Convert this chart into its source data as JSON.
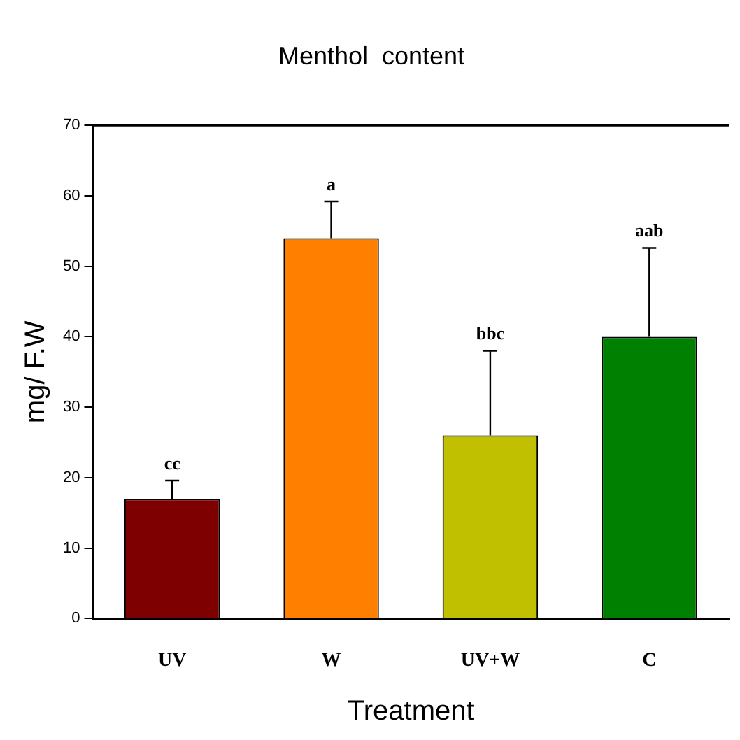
{
  "chart_data": {
    "type": "bar",
    "title": "Menthol  content",
    "xlabel": "Treatment",
    "ylabel": "mg/ F.W",
    "categories": [
      "UV",
      "W",
      "UV+W",
      "C"
    ],
    "values": [
      17,
      54,
      26,
      40
    ],
    "colors": [
      "#7f0000",
      "#ff8000",
      "#c0c000",
      "#008000"
    ],
    "errors": [
      [
        17,
        19.6
      ],
      [
        54,
        59.2
      ],
      [
        26,
        38
      ],
      [
        40,
        52.6
      ]
    ],
    "ylim": [
      0,
      70
    ],
    "yticks": [
      0,
      10,
      20,
      30,
      40,
      50,
      60,
      70
    ],
    "grid": false,
    "legend": false,
    "annotations": [
      "cc",
      "a",
      "bbc",
      "aab"
    ]
  }
}
